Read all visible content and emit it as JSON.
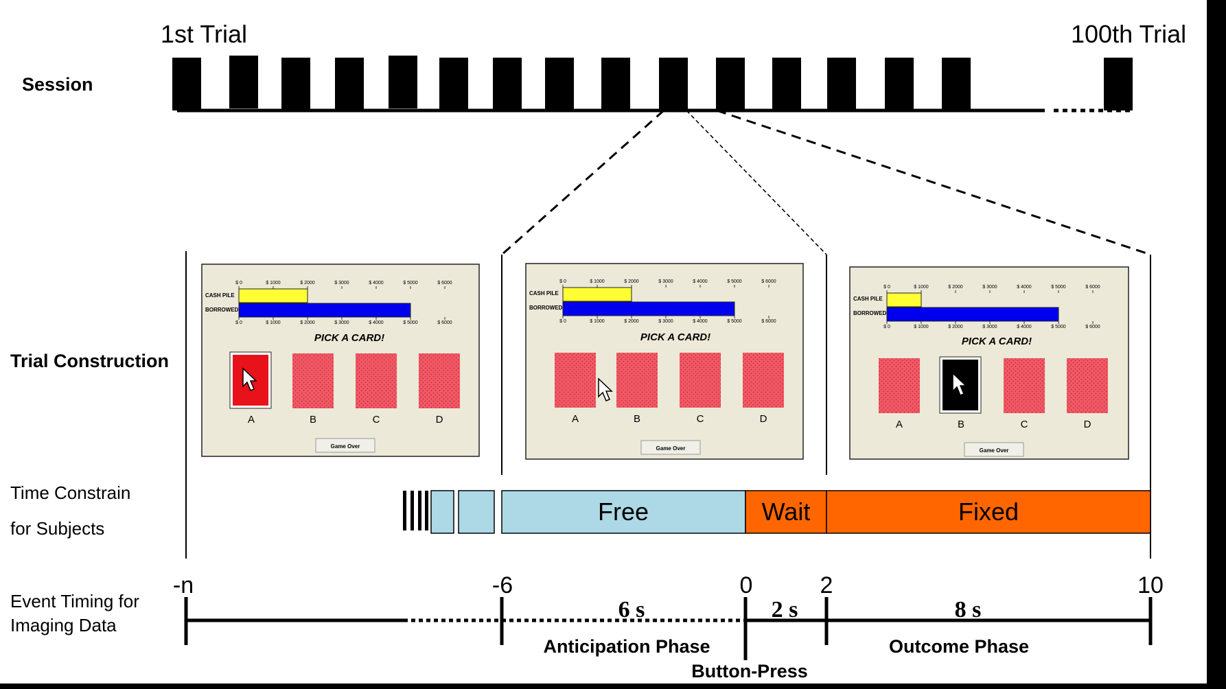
{
  "session": {
    "label": "Session",
    "first_trial": "1st Trial",
    "last_trial": "100th Trial"
  },
  "trial_construction": {
    "label": "Trial Construction",
    "panels": [
      {
        "axis_ticks": [
          "$ 0",
          "$ 1000",
          "$ 2000",
          "$ 3000",
          "$ 4000",
          "$ 5000",
          "$ 6000"
        ],
        "cash_label": "CASH PILE",
        "borrowed_label": "BORROWED",
        "cash_value": 2000,
        "borrowed_value": 5000,
        "prompt": "PICK A CARD!",
        "cards": [
          "A",
          "B",
          "C",
          "D"
        ],
        "selected_card": "A",
        "selected_color": "#e8121a",
        "button": "Game Over"
      },
      {
        "axis_ticks": [
          "$ 0",
          "$ 1000",
          "$ 2000",
          "$ 3000",
          "$ 4000",
          "$ 5000",
          "$ 6000"
        ],
        "cash_label": "CASH PILE",
        "borrowed_label": "BORROWED",
        "cash_value": 2000,
        "borrowed_value": 5000,
        "prompt": "PICK A CARD!",
        "cards": [
          "A",
          "B",
          "C",
          "D"
        ],
        "selected_card": "",
        "selected_color": "",
        "button": "Game Over"
      },
      {
        "axis_ticks": [
          "$ 0",
          "$ 1000",
          "$ 2000",
          "$ 3000",
          "$ 4000",
          "$ 5000",
          "$ 6000"
        ],
        "cash_label": "CASH PILE",
        "borrowed_label": "BORROWED",
        "cash_value": 1000,
        "borrowed_value": 5000,
        "prompt": "PICK A CARD!",
        "cards": [
          "A",
          "B",
          "C",
          "D"
        ],
        "selected_card": "B",
        "selected_color": "#000000",
        "button": "Game Over"
      }
    ]
  },
  "time_constrain": {
    "label_line1": "Time Constrain",
    "label_line2": "for Subjects",
    "free": "Free",
    "wait": "Wait",
    "fixed": "Fixed",
    "free_color": "#add8e6",
    "orange_color": "#ff6600"
  },
  "event_timing": {
    "label_line1": "Event Timing for",
    "label_line2": "Imaging Data",
    "ticks": [
      "-n",
      "-6",
      "0",
      "2",
      "10"
    ],
    "dur_anticipation": "6 s",
    "dur_wait": "2 s",
    "dur_outcome": "8 s",
    "anticipation_phase": "Anticipation Phase",
    "button_press": "Button-Press",
    "outcome_phase": "Outcome Phase"
  },
  "colors": {
    "card_red": "#f04a5a",
    "panel_bg": "#ece9d8",
    "cash_bar": "#ffff33",
    "borrowed_bar": "#0000ee"
  }
}
